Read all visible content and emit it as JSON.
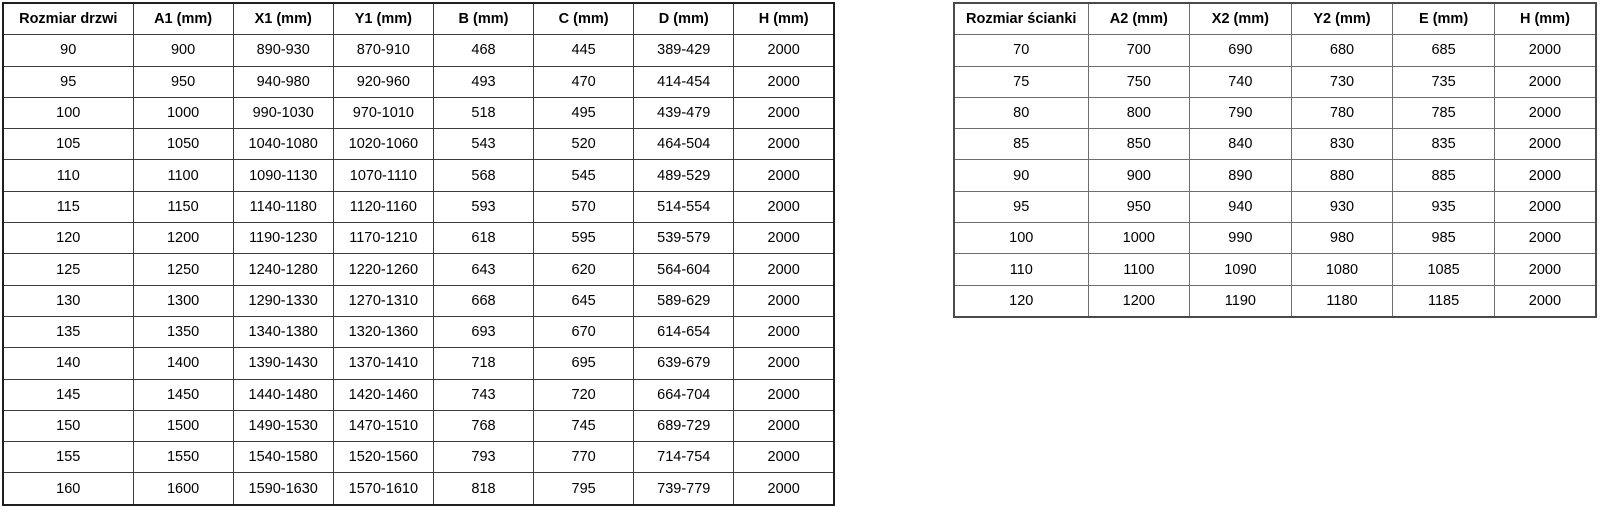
{
  "colors": {
    "background": "#ffffff",
    "text": "#000000",
    "doors_table_grid": "#3c3c3c",
    "walls_table_grid": "#6e6e6e"
  },
  "doors_table": {
    "headers": [
      "Rozmiar drzwi",
      "A1 (mm)",
      "X1 (mm)",
      "Y1 (mm)",
      "B (mm)",
      "C (mm)",
      "D (mm)",
      "H (mm)"
    ],
    "rows": [
      [
        "90",
        "900",
        "890-930",
        "870-910",
        "468",
        "445",
        "389-429",
        "2000"
      ],
      [
        "95",
        "950",
        "940-980",
        "920-960",
        "493",
        "470",
        "414-454",
        "2000"
      ],
      [
        "100",
        "1000",
        "990-1030",
        "970-1010",
        "518",
        "495",
        "439-479",
        "2000"
      ],
      [
        "105",
        "1050",
        "1040-1080",
        "1020-1060",
        "543",
        "520",
        "464-504",
        "2000"
      ],
      [
        "110",
        "1100",
        "1090-1130",
        "1070-1110",
        "568",
        "545",
        "489-529",
        "2000"
      ],
      [
        "115",
        "1150",
        "1140-1180",
        "1120-1160",
        "593",
        "570",
        "514-554",
        "2000"
      ],
      [
        "120",
        "1200",
        "1190-1230",
        "1170-1210",
        "618",
        "595",
        "539-579",
        "2000"
      ],
      [
        "125",
        "1250",
        "1240-1280",
        "1220-1260",
        "643",
        "620",
        "564-604",
        "2000"
      ],
      [
        "130",
        "1300",
        "1290-1330",
        "1270-1310",
        "668",
        "645",
        "589-629",
        "2000"
      ],
      [
        "135",
        "1350",
        "1340-1380",
        "1320-1360",
        "693",
        "670",
        "614-654",
        "2000"
      ],
      [
        "140",
        "1400",
        "1390-1430",
        "1370-1410",
        "718",
        "695",
        "639-679",
        "2000"
      ],
      [
        "145",
        "1450",
        "1440-1480",
        "1420-1460",
        "743",
        "720",
        "664-704",
        "2000"
      ],
      [
        "150",
        "1500",
        "1490-1530",
        "1470-1510",
        "768",
        "745",
        "689-729",
        "2000"
      ],
      [
        "155",
        "1550",
        "1540-1580",
        "1520-1560",
        "793",
        "770",
        "714-754",
        "2000"
      ],
      [
        "160",
        "1600",
        "1590-1630",
        "1570-1610",
        "818",
        "795",
        "739-779",
        "2000"
      ]
    ]
  },
  "walls_table": {
    "headers": [
      "Rozmiar ścianki",
      "A2 (mm)",
      "X2 (mm)",
      "Y2 (mm)",
      "E (mm)",
      "H (mm)"
    ],
    "rows": [
      [
        "70",
        "700",
        "690",
        "680",
        "685",
        "2000"
      ],
      [
        "75",
        "750",
        "740",
        "730",
        "735",
        "2000"
      ],
      [
        "80",
        "800",
        "790",
        "780",
        "785",
        "2000"
      ],
      [
        "85",
        "850",
        "840",
        "830",
        "835",
        "2000"
      ],
      [
        "90",
        "900",
        "890",
        "880",
        "885",
        "2000"
      ],
      [
        "95",
        "950",
        "940",
        "930",
        "935",
        "2000"
      ],
      [
        "100",
        "1000",
        "990",
        "980",
        "985",
        "2000"
      ],
      [
        "110",
        "1100",
        "1090",
        "1080",
        "1085",
        "2000"
      ],
      [
        "120",
        "1200",
        "1190",
        "1180",
        "1185",
        "2000"
      ]
    ]
  }
}
